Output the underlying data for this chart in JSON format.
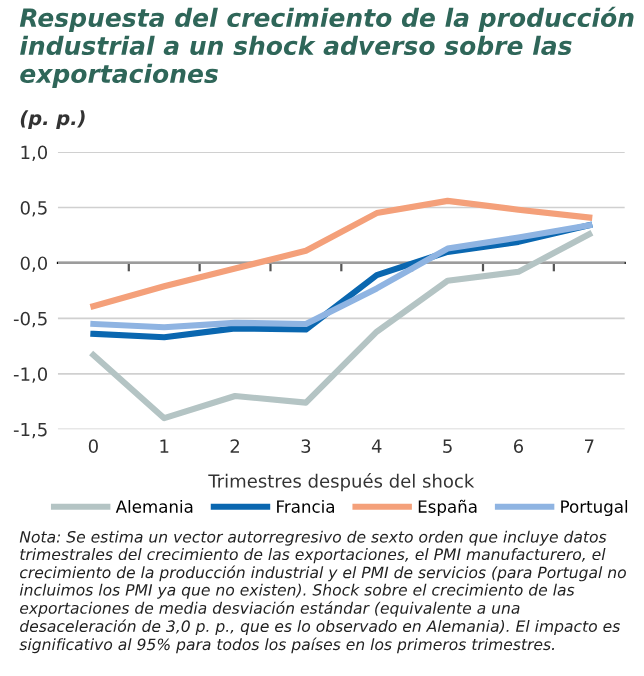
{
  "chart_data": {
    "type": "line",
    "title": "Respuesta del crecimiento de la producción industrial a un shock adverso sobre las exportaciones",
    "ylabel": "(p. p.)",
    "xlabel": "Trimestres después del shock",
    "categories": [
      "0",
      "1",
      "2",
      "3",
      "4",
      "5",
      "6",
      "7"
    ],
    "series": [
      {
        "name": "Alemania",
        "color": "#b4c4c4",
        "values": [
          -0.83,
          -1.4,
          -1.2,
          -1.26,
          -0.62,
          -0.16,
          -0.08,
          0.26
        ]
      },
      {
        "name": "Francia",
        "color": "#0a67b0",
        "values": [
          -0.64,
          -0.67,
          -0.59,
          -0.6,
          -0.11,
          0.1,
          0.19,
          0.34
        ]
      },
      {
        "name": "España",
        "color": "#f4a07a",
        "values": [
          -0.39,
          -0.21,
          -0.05,
          0.11,
          0.45,
          0.56,
          0.48,
          0.41
        ]
      },
      {
        "name": "Portugal",
        "color": "#8fb4e2",
        "values": [
          -0.55,
          -0.58,
          -0.54,
          -0.55,
          -0.23,
          0.13,
          0.23,
          0.34
        ]
      }
    ],
    "ylim": [
      -1.5,
      1.0
    ],
    "yticks": [
      {
        "value": -1.5,
        "label": "-1,5"
      },
      {
        "value": -1.0,
        "label": "-1,0"
      },
      {
        "value": -0.5,
        "label": "-0,5"
      },
      {
        "value": 0.0,
        "label": "0,0"
      },
      {
        "value": 0.5,
        "label": "0,5"
      },
      {
        "value": 1.0,
        "label": "1,0"
      }
    ],
    "grid": "y",
    "legend": "bottom",
    "marker": "none",
    "line_style": "solid",
    "annotations": [
      "Nota: Se estima un vector autorregresivo de sexto orden que incluye datos trimestrales del crecimiento de las exportaciones, el PMI manufacturero, el crecimiento de la producción industrial y el PMI de servicios (para Portugal no incluimos los PMI ya que no existen). Shock sobre el crecimiento de las exportaciones de media desviación estándar (equivalente a una desaceleración de 3,0 p. p., que es lo observado en Alemania). El impacto es significativo al 95% para todos los países en los primeros trimestres."
    ]
  }
}
